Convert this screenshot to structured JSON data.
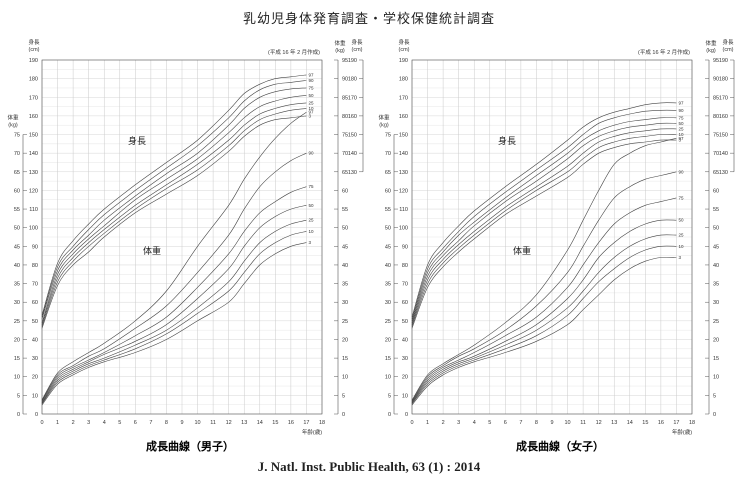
{
  "page_title": "乳幼児身体発育調査・学校保健統計調査",
  "footer": "J. Natl. Inst. Public Health, 63 (1) : 2014",
  "chart_data": [
    {
      "type": "line",
      "title": "成長曲線（男子）",
      "note": "(平成 16 年 2 月作成)",
      "x_label": "年齢(歳)",
      "x_ticks": [
        0,
        1,
        2,
        3,
        4,
        5,
        6,
        7,
        8,
        9,
        10,
        11,
        12,
        13,
        14,
        15,
        16,
        17,
        18
      ],
      "height_axis_title": "身長",
      "height_axis_unit": "(cm)",
      "weight_axis_title": "体重",
      "weight_axis_unit": "(kg)",
      "height_ticks_left": [
        190,
        180,
        170,
        160,
        150,
        140,
        130,
        120,
        110,
        100,
        90,
        80,
        70,
        60,
        50,
        40,
        30,
        20,
        10,
        0
      ],
      "height_ticks_right": [
        190,
        180,
        170,
        160,
        150,
        140,
        130
      ],
      "weight_ticks_left": [
        75,
        70,
        65,
        60,
        55,
        50,
        45,
        40,
        35,
        30,
        25,
        20,
        15,
        10,
        5,
        0
      ],
      "weight_ticks_right_top": [
        95,
        90,
        85
      ],
      "weight_ticks_right_bottom": [
        80,
        75,
        70,
        65,
        60,
        55,
        50,
        45,
        40,
        35,
        30,
        25,
        20,
        15,
        10,
        5,
        0
      ],
      "label_height": "身長",
      "label_weight": "体重",
      "percentile_labels": [
        "97",
        "90",
        "75",
        "50",
        "25",
        "10",
        "3"
      ],
      "height_series": [
        {
          "name": "97",
          "x": [
            0,
            1,
            2,
            3,
            4,
            6,
            8,
            10,
            12,
            13,
            14,
            15,
            16,
            17
          ],
          "y": [
            53,
            81,
            93,
            102,
            110,
            123,
            135,
            147,
            163,
            172,
            177,
            180,
            181,
            182
          ]
        },
        {
          "name": "90",
          "x": [
            0,
            1,
            2,
            3,
            4,
            6,
            8,
            10,
            12,
            13,
            14,
            15,
            16,
            17
          ],
          "y": [
            52,
            79,
            90,
            99,
            107,
            120,
            132,
            144,
            159,
            168,
            174,
            177,
            178,
            179
          ]
        },
        {
          "name": "75",
          "x": [
            0,
            1,
            2,
            3,
            4,
            6,
            8,
            10,
            12,
            13,
            14,
            15,
            16,
            17
          ],
          "y": [
            51,
            77,
            88,
            96,
            104,
            117,
            129,
            140,
            155,
            164,
            170,
            173,
            174.5,
            175
          ]
        },
        {
          "name": "50",
          "x": [
            0,
            1,
            2,
            3,
            4,
            6,
            8,
            10,
            12,
            13,
            14,
            15,
            16,
            17
          ],
          "y": [
            49,
            75,
            86,
            94,
            101,
            115,
            126,
            137,
            151,
            159,
            165,
            168,
            170,
            171
          ]
        },
        {
          "name": "25",
          "x": [
            0,
            1,
            2,
            3,
            4,
            6,
            8,
            10,
            12,
            13,
            14,
            15,
            16,
            17
          ],
          "y": [
            48,
            73,
            84,
            92,
            99,
            112,
            123,
            134,
            147,
            155,
            161,
            164,
            166,
            167
          ]
        },
        {
          "name": "10",
          "x": [
            0,
            1,
            2,
            3,
            4,
            6,
            8,
            10,
            12,
            13,
            14,
            15,
            16,
            17
          ],
          "y": [
            47,
            71,
            82,
            90,
            97,
            110,
            121,
            131,
            144,
            152,
            158,
            161,
            163,
            164
          ]
        },
        {
          "name": "3",
          "x": [
            0,
            1,
            2,
            3,
            4,
            6,
            8,
            10,
            12,
            13,
            14,
            15,
            16,
            17
          ],
          "y": [
            46,
            69,
            80,
            87,
            95,
            108,
            118,
            128,
            141,
            149,
            155,
            158,
            159,
            160
          ]
        }
      ],
      "weight_series": [
        {
          "name": "97",
          "x": [
            0,
            1,
            2,
            3,
            4,
            6,
            8,
            10,
            12,
            13,
            14,
            15,
            16,
            17
          ],
          "y": [
            3.8,
            11,
            14,
            16.5,
            19,
            25,
            33,
            45,
            56,
            63,
            69,
            74,
            78,
            81
          ]
        },
        {
          "name": "90",
          "x": [
            0,
            1,
            2,
            3,
            4,
            6,
            8,
            10,
            12,
            13,
            14,
            15,
            16,
            17
          ],
          "y": [
            3.6,
            10.5,
            13,
            15.5,
            17.5,
            23,
            29,
            38,
            48,
            55,
            61,
            65,
            68,
            70
          ]
        },
        {
          "name": "75",
          "x": [
            0,
            1,
            2,
            3,
            4,
            6,
            8,
            10,
            12,
            13,
            14,
            15,
            16,
            17
          ],
          "y": [
            3.4,
            10,
            12.5,
            14.5,
            16.5,
            21,
            26,
            34,
            43,
            49,
            54,
            57,
            59.5,
            61
          ]
        },
        {
          "name": "50",
          "x": [
            0,
            1,
            2,
            3,
            4,
            6,
            8,
            10,
            12,
            13,
            14,
            15,
            16,
            17
          ],
          "y": [
            3.1,
            9.5,
            12,
            14,
            16,
            19.5,
            24,
            31,
            39,
            45,
            50,
            53,
            55,
            56
          ]
        },
        {
          "name": "25",
          "x": [
            0,
            1,
            2,
            3,
            4,
            6,
            8,
            10,
            12,
            13,
            14,
            15,
            16,
            17
          ],
          "y": [
            2.9,
            9,
            11.5,
            13.5,
            15,
            18.5,
            22.5,
            28.5,
            35.5,
            41,
            46,
            49,
            51,
            52
          ]
        },
        {
          "name": "10",
          "x": [
            0,
            1,
            2,
            3,
            4,
            6,
            8,
            10,
            12,
            13,
            14,
            15,
            16,
            17
          ],
          "y": [
            2.7,
            8.5,
            11,
            13,
            14.5,
            17.5,
            21.5,
            27,
            33,
            38,
            43,
            46,
            48,
            49
          ]
        },
        {
          "name": "3",
          "x": [
            0,
            1,
            2,
            3,
            4,
            6,
            8,
            10,
            12,
            13,
            14,
            15,
            16,
            17
          ],
          "y": [
            2.4,
            8,
            10.5,
            12.5,
            14,
            16.5,
            20,
            25,
            30,
            35,
            40,
            43,
            45,
            46
          ]
        }
      ]
    },
    {
      "type": "line",
      "title": "成長曲線（女子）",
      "note": "(平成 16 年 2 月作成)",
      "x_label": "年齢(歳)",
      "x_ticks": [
        0,
        1,
        2,
        3,
        4,
        5,
        6,
        7,
        8,
        9,
        10,
        11,
        12,
        13,
        14,
        15,
        16,
        17,
        18
      ],
      "height_axis_title": "身長",
      "height_axis_unit": "(cm)",
      "weight_axis_title": "体重",
      "weight_axis_unit": "(kg)",
      "height_ticks_left": [
        190,
        180,
        170,
        160,
        150,
        140,
        130,
        120,
        110,
        100,
        90,
        80,
        70,
        60,
        50,
        40,
        30,
        20,
        10,
        0
      ],
      "height_ticks_right": [
        190,
        180,
        170,
        160,
        150,
        140,
        130
      ],
      "weight_ticks_left": [
        75,
        70,
        65,
        60,
        55,
        50,
        45,
        40,
        35,
        30,
        25,
        20,
        15,
        10,
        5,
        0
      ],
      "weight_ticks_right_top": [
        95,
        90,
        85
      ],
      "weight_ticks_right_bottom": [
        80,
        75,
        70,
        65,
        60,
        55,
        50,
        45,
        40,
        35,
        30,
        25,
        20,
        15,
        10,
        5,
        0
      ],
      "label_height": "身長",
      "label_weight": "体重",
      "percentile_labels": [
        "97",
        "90",
        "75",
        "50",
        "25",
        "10",
        "3"
      ],
      "height_series": [
        {
          "name": "97",
          "x": [
            0,
            1,
            2,
            3,
            4,
            6,
            8,
            10,
            11,
            12,
            13,
            14,
            15,
            16,
            17
          ],
          "y": [
            52,
            80,
            92,
            101,
            109,
            122,
            134,
            147,
            154,
            159,
            162,
            164,
            166,
            167,
            167
          ]
        },
        {
          "name": "90",
          "x": [
            0,
            1,
            2,
            3,
            4,
            6,
            8,
            10,
            11,
            12,
            13,
            14,
            15,
            16,
            17
          ],
          "y": [
            51,
            78,
            89,
            98,
            106,
            119,
            131,
            143,
            150,
            156,
            159,
            161,
            162.5,
            163,
            163
          ]
        },
        {
          "name": "75",
          "x": [
            0,
            1,
            2,
            3,
            4,
            6,
            8,
            10,
            11,
            12,
            13,
            14,
            15,
            16,
            17
          ],
          "y": [
            50,
            76,
            87,
            96,
            103,
            116,
            128,
            140,
            147,
            152,
            155,
            157,
            158,
            159,
            159
          ]
        },
        {
          "name": "50",
          "x": [
            0,
            1,
            2,
            3,
            4,
            6,
            8,
            10,
            11,
            12,
            13,
            14,
            15,
            16,
            17
          ],
          "y": [
            49,
            74,
            85,
            93,
            101,
            114,
            125,
            137,
            144,
            149,
            152,
            154,
            155,
            156,
            156
          ]
        },
        {
          "name": "25",
          "x": [
            0,
            1,
            2,
            3,
            4,
            6,
            8,
            10,
            11,
            12,
            13,
            14,
            15,
            16,
            17
          ],
          "y": [
            48,
            72,
            83,
            91,
            98,
            111,
            122,
            133,
            140,
            146,
            149,
            151,
            152,
            153,
            153
          ]
        },
        {
          "name": "10",
          "x": [
            0,
            1,
            2,
            3,
            4,
            6,
            8,
            10,
            11,
            12,
            13,
            14,
            15,
            16,
            17
          ],
          "y": [
            47,
            70,
            81,
            89,
            96,
            109,
            120,
            130,
            137,
            143,
            146,
            148,
            149,
            150,
            150
          ]
        },
        {
          "name": "3",
          "x": [
            0,
            1,
            2,
            3,
            4,
            6,
            8,
            10,
            11,
            12,
            13,
            14,
            15,
            16,
            17
          ],
          "y": [
            46,
            68,
            79,
            87,
            94,
            107,
            117,
            127,
            134,
            140,
            143,
            145,
            146,
            147,
            147
          ]
        }
      ],
      "weight_series": [
        {
          "name": "97",
          "x": [
            0,
            1,
            2,
            3,
            4,
            6,
            8,
            10,
            11,
            12,
            13,
            14,
            15,
            16,
            17
          ],
          "y": [
            3.7,
            10.5,
            13.5,
            16,
            18.5,
            24.5,
            32,
            44,
            52,
            60,
            67,
            70,
            72,
            73,
            74
          ]
        },
        {
          "name": "90",
          "x": [
            0,
            1,
            2,
            3,
            4,
            6,
            8,
            10,
            11,
            12,
            13,
            14,
            15,
            16,
            17
          ],
          "y": [
            3.5,
            10,
            13,
            15.5,
            17.5,
            22.5,
            29,
            38,
            45,
            52,
            58,
            61,
            63,
            64,
            65
          ]
        },
        {
          "name": "75",
          "x": [
            0,
            1,
            2,
            3,
            4,
            6,
            8,
            10,
            11,
            12,
            13,
            14,
            15,
            16,
            17
          ],
          "y": [
            3.3,
            9.5,
            12.5,
            14.5,
            16.5,
            21,
            26,
            34,
            40,
            46,
            51,
            54,
            56,
            57,
            58
          ]
        },
        {
          "name": "50",
          "x": [
            0,
            1,
            2,
            3,
            4,
            6,
            8,
            10,
            11,
            12,
            13,
            14,
            15,
            16,
            17
          ],
          "y": [
            3.1,
            9,
            12,
            14,
            15.5,
            19.5,
            24,
            31,
            36,
            42,
            46,
            49,
            51,
            52,
            52
          ]
        },
        {
          "name": "25",
          "x": [
            0,
            1,
            2,
            3,
            4,
            6,
            8,
            10,
            11,
            12,
            13,
            14,
            15,
            16,
            17
          ],
          "y": [
            2.9,
            8.5,
            11.5,
            13.5,
            15,
            18.5,
            22.5,
            28.5,
            33,
            38,
            42,
            45,
            47,
            48,
            48
          ]
        },
        {
          "name": "10",
          "x": [
            0,
            1,
            2,
            3,
            4,
            6,
            8,
            10,
            11,
            12,
            13,
            14,
            15,
            16,
            17
          ],
          "y": [
            2.7,
            8,
            11,
            13,
            14.5,
            17.5,
            21,
            26.5,
            31,
            35.5,
            39,
            42,
            44,
            45,
            45
          ]
        },
        {
          "name": "3",
          "x": [
            0,
            1,
            2,
            3,
            4,
            6,
            8,
            10,
            11,
            12,
            13,
            14,
            15,
            16,
            17
          ],
          "y": [
            2.4,
            7.5,
            10.5,
            12.5,
            14,
            16.5,
            19.5,
            24,
            28,
            32,
            36,
            39,
            41,
            42,
            42
          ]
        }
      ]
    }
  ]
}
